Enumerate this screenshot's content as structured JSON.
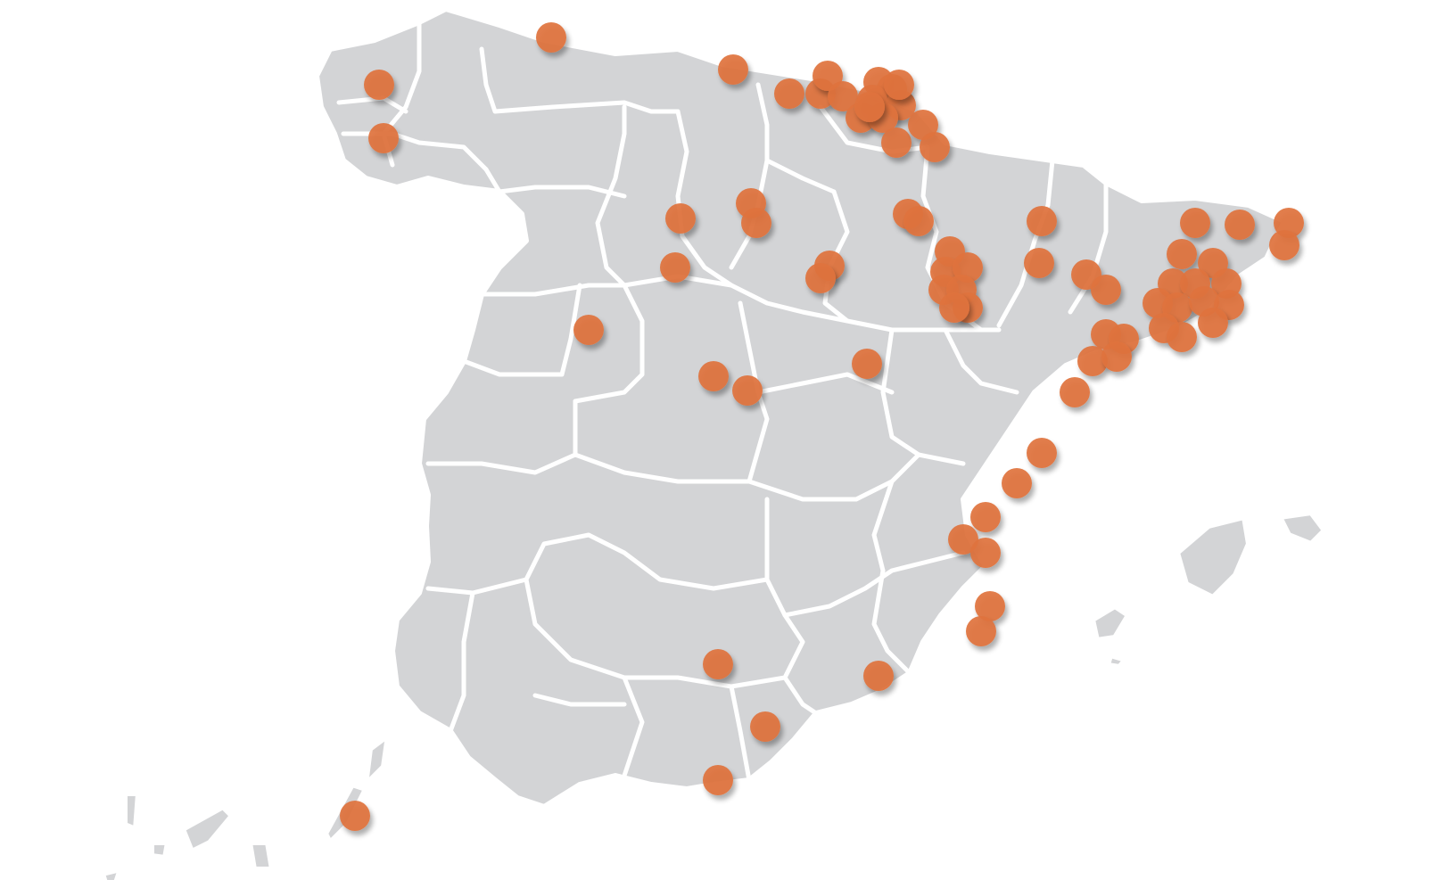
{
  "map": {
    "country": "Spain",
    "colors": {
      "land": "#d3d4d6",
      "border": "#ffffff",
      "marker": "#e0733e",
      "background": "#ffffff"
    }
  },
  "markers": [
    {
      "id": "galicia-1"
    },
    {
      "id": "galicia-2"
    },
    {
      "id": "asturias"
    },
    {
      "id": "cantabria"
    },
    {
      "id": "bizkaia-1"
    },
    {
      "id": "bizkaia-2"
    },
    {
      "id": "bizkaia-3"
    },
    {
      "id": "bizkaia-4"
    },
    {
      "id": "gipuzkoa-1"
    },
    {
      "id": "gipuzkoa-2"
    },
    {
      "id": "gipuzkoa-3"
    },
    {
      "id": "gipuzkoa-4"
    },
    {
      "id": "gipuzkoa-5"
    },
    {
      "id": "gipuzkoa-6"
    },
    {
      "id": "gipuzkoa-7"
    },
    {
      "id": "gipuzkoa-8"
    },
    {
      "id": "navarra-1"
    },
    {
      "id": "navarra-2"
    },
    {
      "id": "navarra-3"
    },
    {
      "id": "burgos-1"
    },
    {
      "id": "burgos-2"
    },
    {
      "id": "palencia"
    },
    {
      "id": "valladolid"
    },
    {
      "id": "soria-1"
    },
    {
      "id": "soria-2"
    },
    {
      "id": "salamanca"
    },
    {
      "id": "segovia"
    },
    {
      "id": "madrid"
    },
    {
      "id": "guadalajara"
    },
    {
      "id": "la-rioja-1"
    },
    {
      "id": "la-rioja-2"
    },
    {
      "id": "zaragoza-1"
    },
    {
      "id": "zaragoza-2"
    },
    {
      "id": "zaragoza-3"
    },
    {
      "id": "zaragoza-4"
    },
    {
      "id": "zaragoza-5"
    },
    {
      "id": "zaragoza-6"
    },
    {
      "id": "zaragoza-7"
    },
    {
      "id": "huesca-1"
    },
    {
      "id": "huesca-2"
    },
    {
      "id": "lleida-1"
    },
    {
      "id": "lleida-2"
    },
    {
      "id": "tarragona-1"
    },
    {
      "id": "tarragona-2"
    },
    {
      "id": "tarragona-3"
    },
    {
      "id": "tarragona-4"
    },
    {
      "id": "castellon"
    },
    {
      "id": "girona-1"
    },
    {
      "id": "girona-2"
    },
    {
      "id": "girona-3"
    },
    {
      "id": "girona-4"
    },
    {
      "id": "barcelona-1"
    },
    {
      "id": "barcelona-2"
    },
    {
      "id": "barcelona-3"
    },
    {
      "id": "barcelona-4"
    },
    {
      "id": "barcelona-5"
    },
    {
      "id": "barcelona-6"
    },
    {
      "id": "barcelona-7"
    },
    {
      "id": "barcelona-8"
    },
    {
      "id": "barcelona-9"
    },
    {
      "id": "barcelona-10"
    },
    {
      "id": "barcelona-11"
    },
    {
      "id": "barcelona-12"
    },
    {
      "id": "castellon-2"
    },
    {
      "id": "valencia-1"
    },
    {
      "id": "valencia-2"
    },
    {
      "id": "valencia-3"
    },
    {
      "id": "valencia-4"
    },
    {
      "id": "alicante-1"
    },
    {
      "id": "alicante-2"
    },
    {
      "id": "murcia"
    },
    {
      "id": "jaen"
    },
    {
      "id": "granada"
    },
    {
      "id": "malaga"
    },
    {
      "id": "canarias"
    }
  ]
}
